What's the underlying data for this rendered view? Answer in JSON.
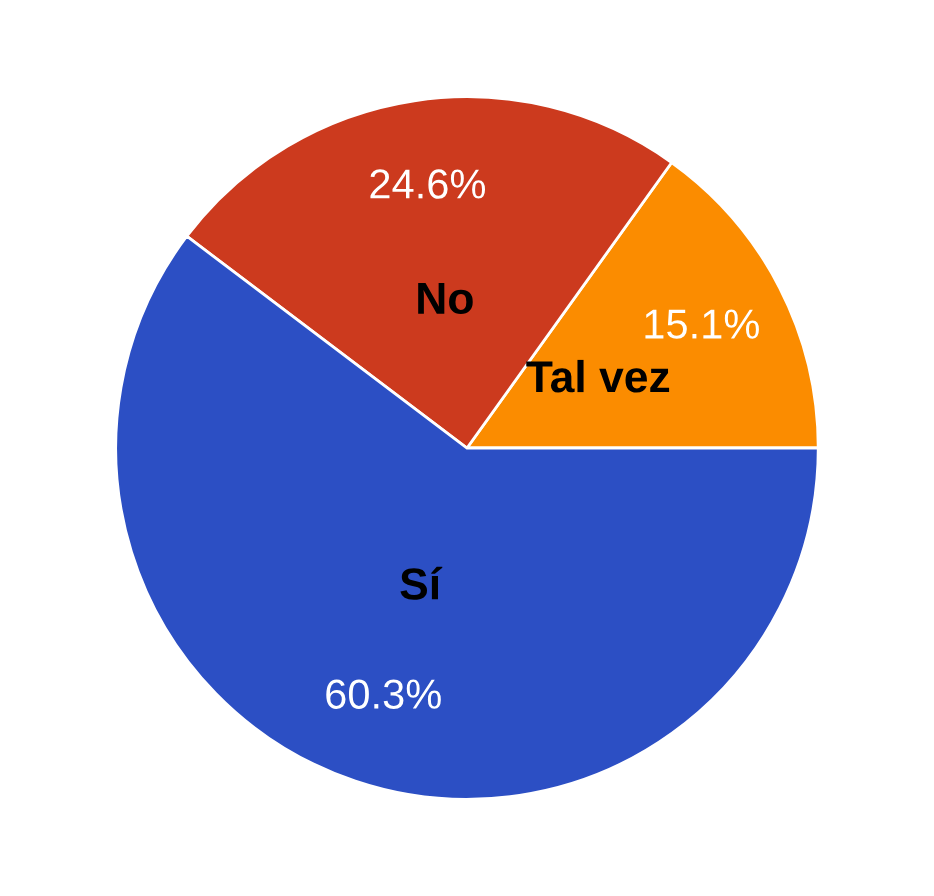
{
  "chart_data": {
    "type": "pie",
    "categories": [
      "Tal vez",
      "No",
      "Sí"
    ],
    "values": [
      15.1,
      24.6,
      60.3
    ],
    "colors": [
      "#fb8c00",
      "#cc3a1e",
      "#2c4fc4"
    ],
    "value_labels": [
      "15.1%",
      "24.6%",
      "60.3%"
    ],
    "legend": false
  }
}
